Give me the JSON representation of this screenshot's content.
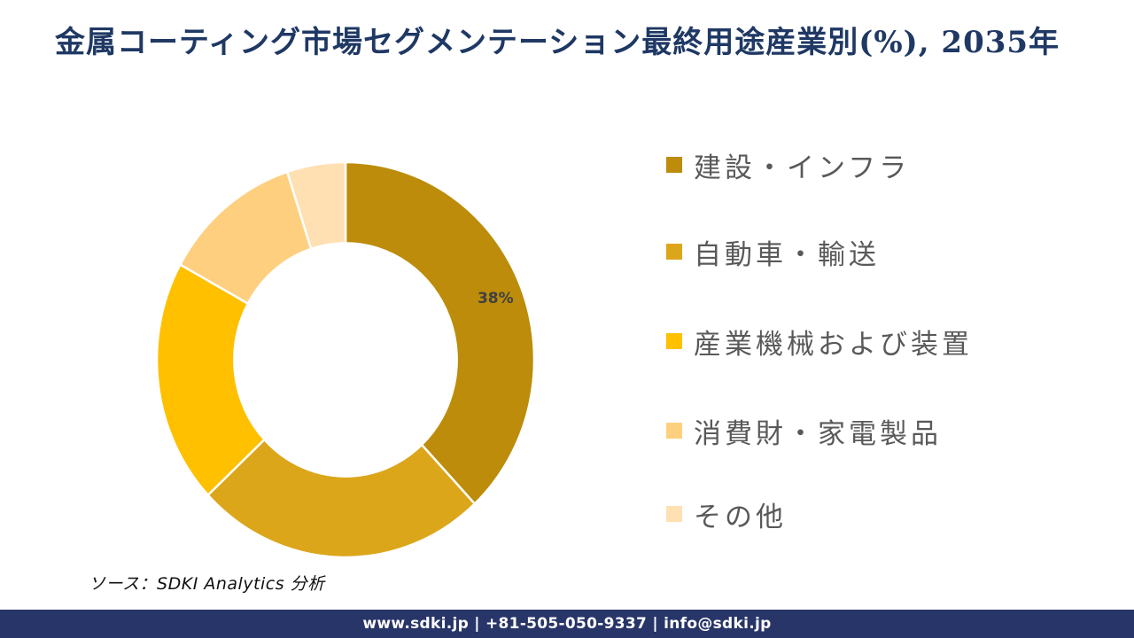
{
  "title": "金属コーティング市場セグメンテーション最終用途産業別(%), 2035年",
  "source_note": "ソース：SDKI Analytics 分析",
  "footer": {
    "text": "www.sdki.jp | +81-505-050-9337 | info@sdki.jp",
    "background": "#283568",
    "text_color": "#FFFFFF"
  },
  "colors": {
    "title": "#1F3864",
    "legend_text": "#595959",
    "data_label": "#404040",
    "background": "#FFFFFF"
  },
  "chart_data": {
    "type": "pie",
    "subtype": "donut",
    "title": "金属コーティング市場セグメンテーション最終用途産業別(%), 2035年",
    "unit": "%",
    "start_angle_deg": 0,
    "direction": "clockwise",
    "inner_radius_ratio": 0.59,
    "legend_position": "right",
    "series": [
      {
        "name": "建設・インフラ",
        "value": 38,
        "color": "#BC8C0A",
        "data_label": "38%"
      },
      {
        "name": "自動車・輸送",
        "value": 25,
        "color": "#DCA61B",
        "data_label": ""
      },
      {
        "name": "産業機械および装置",
        "value": 20,
        "color": "#FFC000",
        "data_label": ""
      },
      {
        "name": "消費財・家電製品",
        "value": 12,
        "color": "#FFCF80",
        "data_label": ""
      },
      {
        "name": "その他",
        "value": 5,
        "color": "#FFE0B3",
        "data_label": ""
      }
    ]
  }
}
